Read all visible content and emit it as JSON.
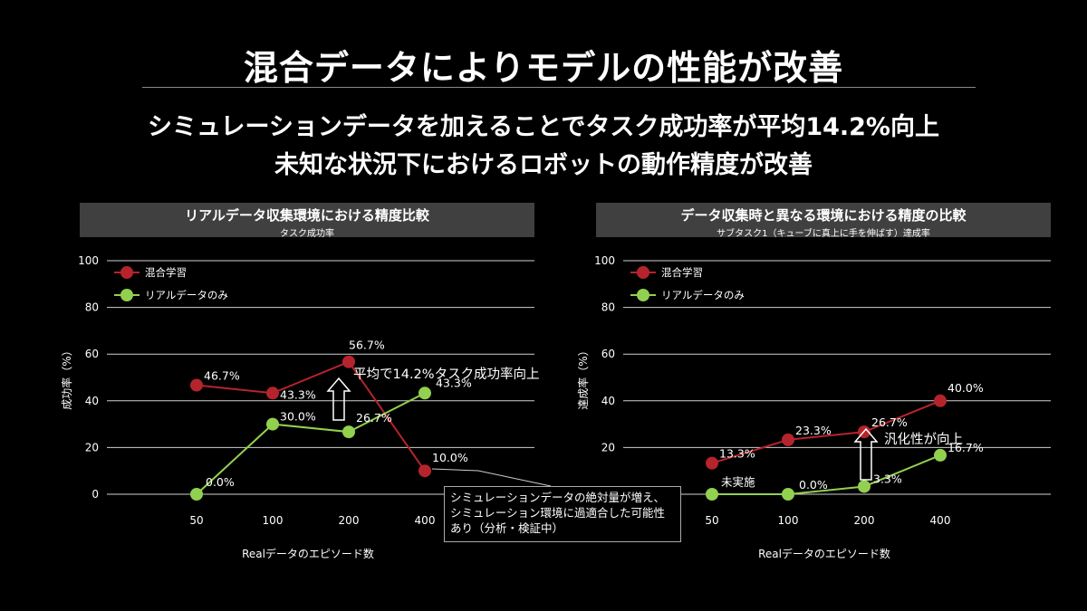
{
  "slide": {
    "title": "混合データによりモデルの性能が改善",
    "subtitle_1": "シミュレーションデータを加えることでタスク成功率が平均14.2%向上",
    "subtitle_2": "未知な状況下におけるロボットの動作精度が改善"
  },
  "chart_data": [
    {
      "type": "line",
      "title": "リアルデータ収集環境における精度比較",
      "subtitle": "タスク成功率",
      "xlabel": "Realデータのエピソード数",
      "ylabel": "成功率（%）",
      "categories": [
        "50",
        "100",
        "200",
        "400"
      ],
      "ylim": [
        0,
        100
      ],
      "yticks": [
        0,
        20,
        40,
        60,
        80,
        100
      ],
      "grid": true,
      "legend": "top-left",
      "series": [
        {
          "name": "混合学習",
          "color": "#b5242d",
          "values": [
            46.7,
            43.3,
            56.7,
            10.0
          ],
          "labels": [
            "46.7%",
            "43.3%",
            "56.7%",
            "10.0%"
          ]
        },
        {
          "name": "リアルデータのみ",
          "color": "#92d050",
          "values": [
            0.0,
            30.0,
            26.7,
            43.3
          ],
          "labels": [
            "0.0%",
            "30.0%",
            "26.7%",
            "43.3%"
          ]
        }
      ],
      "annotation": "平均で14.2%タスク成功率向上",
      "note": "シミュレーションデータの絶対量が増え、シミュレーション環境に過適合した可能性あり（分析・検証中）"
    },
    {
      "type": "line",
      "title": "データ収集時と異なる環境における精度の比較",
      "subtitle": "サブタスク1（キューブに真上に手を伸ばす）達成率",
      "xlabel": "Realデータのエピソード数",
      "ylabel": "達成率（%）",
      "categories": [
        "50",
        "100",
        "200",
        "400"
      ],
      "ylim": [
        0,
        100
      ],
      "yticks": [
        0,
        20,
        40,
        60,
        80,
        100
      ],
      "grid": true,
      "legend": "top-left",
      "series": [
        {
          "name": "混合学習",
          "color": "#b5242d",
          "values": [
            13.3,
            23.3,
            26.7,
            40.0
          ],
          "labels": [
            "13.3%",
            "23.3%",
            "26.7%",
            "40.0%"
          ]
        },
        {
          "name": "リアルデータのみ",
          "color": "#92d050",
          "values": [
            0.0,
            0.0,
            3.3,
            16.7
          ],
          "labels": [
            "未実施",
            "0.0%",
            "3.3%",
            "16.7%"
          ]
        }
      ],
      "annotation": "汎化性が向上"
    }
  ]
}
